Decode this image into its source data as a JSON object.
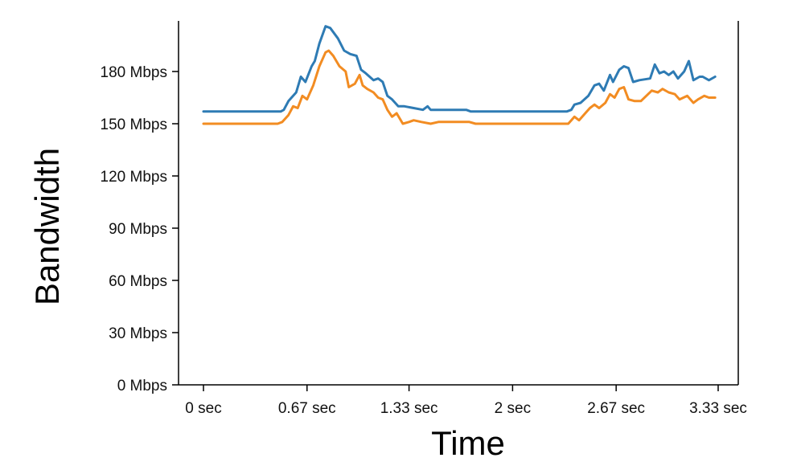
{
  "chart_data": {
    "type": "line",
    "title": "",
    "xlabel": "Time",
    "ylabel": "Bandwidth",
    "xlim": [
      -0.17,
      3.5
    ],
    "ylim": [
      0,
      210
    ],
    "grid": false,
    "legend": "none",
    "x_ticks": [
      {
        "value": 0,
        "label": "0 sec"
      },
      {
        "value": 0.67,
        "label": "0.67 sec"
      },
      {
        "value": 1.33,
        "label": "1.33 sec"
      },
      {
        "value": 2,
        "label": "2 sec"
      },
      {
        "value": 2.67,
        "label": "2.67 sec"
      },
      {
        "value": 3.33,
        "label": "3.33 sec"
      }
    ],
    "y_ticks": [
      {
        "value": 0,
        "label": "0 Mbps"
      },
      {
        "value": 30,
        "label": "30 Mbps"
      },
      {
        "value": 60,
        "label": "60 Mbps"
      },
      {
        "value": 90,
        "label": "90 Mbps"
      },
      {
        "value": 120,
        "label": "120 Mbps"
      },
      {
        "value": 150,
        "label": "150 Mbps"
      },
      {
        "value": 180,
        "label": "180 Mbps"
      }
    ],
    "series": [
      {
        "color": "#2e7bb4",
        "points": [
          [
            0,
            157
          ],
          [
            0.5,
            157
          ],
          [
            0.52,
            158
          ],
          [
            0.55,
            163
          ],
          [
            0.6,
            168
          ],
          [
            0.63,
            177
          ],
          [
            0.66,
            174
          ],
          [
            0.7,
            183
          ],
          [
            0.72,
            186
          ],
          [
            0.75,
            196
          ],
          [
            0.79,
            206
          ],
          [
            0.82,
            205
          ],
          [
            0.87,
            199
          ],
          [
            0.91,
            192
          ],
          [
            0.95,
            190
          ],
          [
            0.99,
            189
          ],
          [
            1.02,
            181
          ],
          [
            1.05,
            179
          ],
          [
            1.1,
            175
          ],
          [
            1.13,
            176
          ],
          [
            1.16,
            174
          ],
          [
            1.19,
            166
          ],
          [
            1.22,
            164
          ],
          [
            1.26,
            160
          ],
          [
            1.3,
            160
          ],
          [
            1.36,
            159
          ],
          [
            1.42,
            158
          ],
          [
            1.45,
            160
          ],
          [
            1.47,
            158
          ],
          [
            1.52,
            158
          ],
          [
            1.58,
            158
          ],
          [
            1.64,
            158
          ],
          [
            1.7,
            158
          ],
          [
            1.73,
            157
          ],
          [
            1.79,
            157
          ],
          [
            1.85,
            157
          ],
          [
            2.0,
            157
          ],
          [
            2.2,
            157
          ],
          [
            2.35,
            157
          ],
          [
            2.38,
            158
          ],
          [
            2.4,
            161
          ],
          [
            2.44,
            162
          ],
          [
            2.49,
            166
          ],
          [
            2.53,
            172
          ],
          [
            2.56,
            173
          ],
          [
            2.59,
            169
          ],
          [
            2.63,
            178
          ],
          [
            2.65,
            174
          ],
          [
            2.69,
            181
          ],
          [
            2.72,
            183
          ],
          [
            2.75,
            182
          ],
          [
            2.78,
            174
          ],
          [
            2.82,
            175
          ],
          [
            2.89,
            176
          ],
          [
            2.92,
            184
          ],
          [
            2.95,
            179
          ],
          [
            2.98,
            180
          ],
          [
            3.01,
            178
          ],
          [
            3.04,
            180
          ],
          [
            3.07,
            176
          ],
          [
            3.11,
            180
          ],
          [
            3.14,
            186
          ],
          [
            3.17,
            175
          ],
          [
            3.21,
            177
          ],
          [
            3.23,
            177
          ],
          [
            3.27,
            175
          ],
          [
            3.31,
            177
          ]
        ]
      },
      {
        "color": "#f28c22",
        "points": [
          [
            0,
            150
          ],
          [
            0.48,
            150
          ],
          [
            0.51,
            151
          ],
          [
            0.55,
            155
          ],
          [
            0.58,
            160
          ],
          [
            0.61,
            159
          ],
          [
            0.64,
            166
          ],
          [
            0.67,
            164
          ],
          [
            0.71,
            172
          ],
          [
            0.75,
            183
          ],
          [
            0.79,
            191
          ],
          [
            0.81,
            192
          ],
          [
            0.84,
            189
          ],
          [
            0.88,
            183
          ],
          [
            0.92,
            180
          ],
          [
            0.94,
            171
          ],
          [
            0.98,
            173
          ],
          [
            1.01,
            178
          ],
          [
            1.03,
            172
          ],
          [
            1.06,
            170
          ],
          [
            1.1,
            168
          ],
          [
            1.13,
            165
          ],
          [
            1.16,
            164
          ],
          [
            1.19,
            158
          ],
          [
            1.22,
            154
          ],
          [
            1.25,
            156
          ],
          [
            1.29,
            150
          ],
          [
            1.33,
            151
          ],
          [
            1.36,
            152
          ],
          [
            1.41,
            151
          ],
          [
            1.47,
            150
          ],
          [
            1.52,
            151
          ],
          [
            1.57,
            151
          ],
          [
            1.62,
            151
          ],
          [
            1.67,
            151
          ],
          [
            1.72,
            151
          ],
          [
            1.76,
            150
          ],
          [
            2.0,
            150
          ],
          [
            2.2,
            150
          ],
          [
            2.36,
            150
          ],
          [
            2.38,
            152
          ],
          [
            2.4,
            154
          ],
          [
            2.43,
            152
          ],
          [
            2.47,
            156
          ],
          [
            2.5,
            159
          ],
          [
            2.53,
            161
          ],
          [
            2.56,
            159
          ],
          [
            2.6,
            162
          ],
          [
            2.63,
            167
          ],
          [
            2.66,
            165
          ],
          [
            2.69,
            170
          ],
          [
            2.72,
            171
          ],
          [
            2.75,
            164
          ],
          [
            2.79,
            163
          ],
          [
            2.83,
            163
          ],
          [
            2.9,
            169
          ],
          [
            2.94,
            168
          ],
          [
            2.97,
            170
          ],
          [
            3.01,
            168
          ],
          [
            3.05,
            167
          ],
          [
            3.08,
            164
          ],
          [
            3.13,
            166
          ],
          [
            3.17,
            162
          ],
          [
            3.2,
            164
          ],
          [
            3.24,
            166
          ],
          [
            3.27,
            165
          ],
          [
            3.31,
            165
          ]
        ]
      }
    ]
  }
}
